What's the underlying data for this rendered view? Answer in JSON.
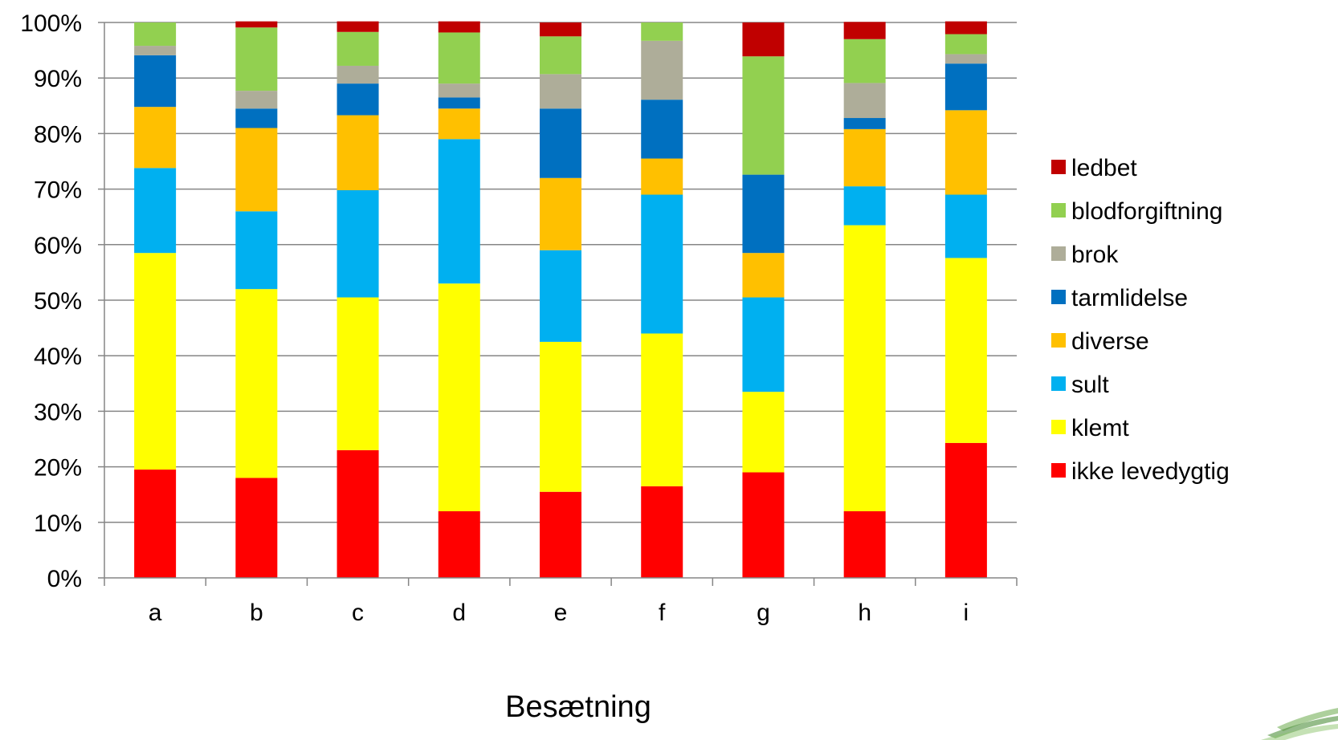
{
  "chart_data": {
    "type": "bar",
    "stacked": true,
    "percent": true,
    "xlabel": "Besætning",
    "ylabel": "",
    "ylim": [
      0,
      100
    ],
    "yticks": [
      "0%",
      "10%",
      "20%",
      "30%",
      "40%",
      "50%",
      "60%",
      "70%",
      "80%",
      "90%",
      "100%"
    ],
    "grid": true,
    "legend_position": "right",
    "categories": [
      "a",
      "b",
      "c",
      "d",
      "e",
      "f",
      "g",
      "h",
      "i"
    ],
    "series": [
      {
        "name": "ikke levedygtig",
        "color": "#FF0000",
        "values": [
          19.5,
          18,
          23,
          12,
          15.5,
          16.5,
          19,
          12,
          24.3
        ]
      },
      {
        "name": "klemt",
        "color": "#FFFF00",
        "values": [
          39,
          34,
          27.5,
          41,
          27,
          27.5,
          14.5,
          51.5,
          33.3
        ]
      },
      {
        "name": "sult",
        "color": "#00B0F0",
        "values": [
          15.3,
          14,
          19.3,
          26,
          16.5,
          25,
          17,
          7,
          11.4
        ]
      },
      {
        "name": "diverse",
        "color": "#FFC000",
        "values": [
          11,
          15,
          13.5,
          5.5,
          13,
          6.5,
          8,
          10.3,
          15.2
        ]
      },
      {
        "name": "tarmlidelse",
        "color": "#0070C0",
        "values": [
          9.3,
          3.5,
          5.7,
          2,
          12.5,
          10.6,
          14.1,
          2,
          8.4
        ]
      },
      {
        "name": "brok",
        "color": "#AEAD99",
        "values": [
          1.7,
          3.2,
          3.2,
          2.5,
          6.2,
          10.6,
          0,
          6.3,
          1.7
        ]
      },
      {
        "name": "blodforgiftning",
        "color": "#92D050",
        "values": [
          4.2,
          11.4,
          6.1,
          9.2,
          6.8,
          3.3,
          21.3,
          7.9,
          3.6
        ]
      },
      {
        "name": "ledbet",
        "color": "#C00000",
        "values": [
          0,
          1.1,
          1.9,
          2,
          2.5,
          0,
          6.1,
          3.1,
          2.3
        ]
      }
    ]
  }
}
